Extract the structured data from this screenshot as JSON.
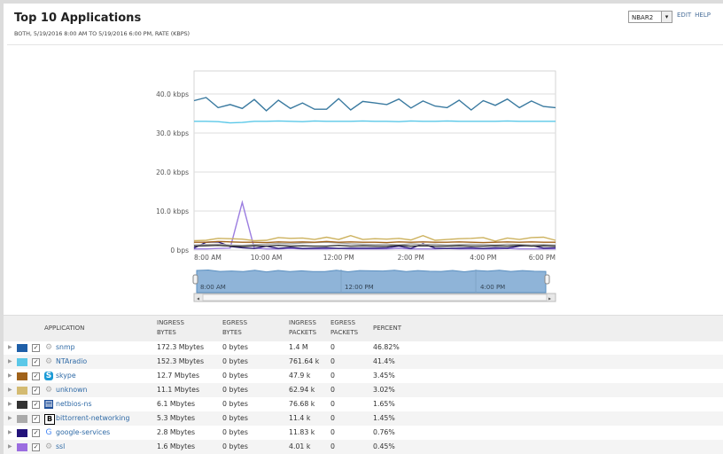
{
  "header": {
    "title": "Top 10 Applications",
    "subtitle": "BOTH, 5/19/2016 8:00 AM TO 5/19/2016 6:00 PM, RATE (KBPS)",
    "select_value": "NBAR2",
    "edit": "EDIT",
    "help": "HELP"
  },
  "chart_data": {
    "type": "line",
    "ylim": [
      0,
      45
    ],
    "y_ticks": [
      "0 bps",
      "10.0 kbps",
      "20.0 kbps",
      "30.0 kbps",
      "40.0 kbps"
    ],
    "y_tick_values": [
      0,
      10,
      20,
      30,
      40
    ],
    "x_ticks": [
      "8:00 AM",
      "10:00 AM",
      "12:00 PM",
      "2:00 PM",
      "4:00 PM",
      "6:00 PM"
    ],
    "navigator_ticks": [
      "8:00 AM",
      "12:00 PM",
      "4:00 PM"
    ],
    "x": [
      "08:00",
      "08:20",
      "08:40",
      "09:00",
      "09:20",
      "09:40",
      "10:00",
      "10:20",
      "10:40",
      "11:00",
      "11:20",
      "11:40",
      "12:00",
      "12:20",
      "12:40",
      "13:00",
      "13:20",
      "13:40",
      "14:00",
      "14:20",
      "14:40",
      "15:00",
      "15:20",
      "15:40",
      "16:00",
      "16:20",
      "16:40",
      "17:00",
      "17:20",
      "17:40",
      "18:00"
    ],
    "grid": true,
    "series": [
      {
        "name": "snmp",
        "color": "#3a7aa0",
        "values": [
          38.3,
          39.1,
          36.5,
          37.3,
          36.3,
          38.6,
          35.7,
          38.4,
          36.3,
          37.7,
          36.1,
          36.1,
          38.8,
          35.9,
          38.1,
          37.7,
          37.3,
          38.7,
          36.4,
          38.2,
          36.9,
          36.5,
          38.4,
          35.9,
          38.3,
          37.1,
          38.7,
          36.5,
          38.2,
          36.8,
          36.5
        ]
      },
      {
        "name": "NTAradio",
        "color": "#5bc8e8",
        "values": [
          33.0,
          33.0,
          32.9,
          32.6,
          32.7,
          33.0,
          33.0,
          33.1,
          33.0,
          32.9,
          33.1,
          33.0,
          33.0,
          33.0,
          33.1,
          33.0,
          33.0,
          32.9,
          33.1,
          33.0,
          33.0,
          33.1,
          33.0,
          33.0,
          33.0,
          33.0,
          33.1,
          33.0,
          33.0,
          33.0,
          33.0
        ]
      },
      {
        "name": "skype",
        "color": "#a0621a",
        "values": [
          2.0,
          2.0,
          2.2,
          2.1,
          2.0,
          2.0,
          1.9,
          2.1,
          2.0,
          2.1,
          2.0,
          2.2,
          2.0,
          2.1,
          2.0,
          2.0,
          1.9,
          2.1,
          2.0,
          2.1,
          2.0,
          2.0,
          2.1,
          2.0,
          1.9,
          2.0,
          2.1,
          2.0,
          2.1,
          2.0,
          2.0
        ]
      },
      {
        "name": "unknown",
        "color": "#cdb25e",
        "values": [
          2.4,
          2.5,
          3.0,
          2.9,
          2.8,
          2.4,
          2.5,
          3.2,
          3.0,
          3.1,
          2.7,
          3.3,
          2.7,
          3.7,
          2.7,
          2.9,
          2.8,
          3.0,
          2.6,
          3.7,
          2.5,
          2.7,
          2.9,
          3.0,
          3.2,
          2.3,
          3.1,
          2.7,
          3.2,
          3.3,
          2.5
        ]
      },
      {
        "name": "netbios-ns",
        "color": "#333333",
        "values": [
          1.0,
          1.1,
          1.2,
          1.0,
          0.9,
          1.1,
          1.0,
          1.2,
          1.0,
          1.1,
          1.0,
          1.0,
          1.2,
          1.0,
          1.1,
          1.0,
          1.0,
          1.2,
          1.0,
          1.1,
          1.0,
          1.0,
          1.1,
          1.0,
          1.0,
          1.1,
          1.0,
          1.2,
          1.0,
          1.1,
          1.0
        ]
      },
      {
        "name": "bittorrent-networking",
        "color": "#aaaaaa",
        "values": [
          1.3,
          1.4,
          1.5,
          1.3,
          1.2,
          1.4,
          1.5,
          1.7,
          1.6,
          1.8,
          1.9,
          2.0,
          1.8,
          1.6,
          1.5,
          1.4,
          1.5,
          1.3,
          1.6,
          1.4,
          1.5,
          1.3,
          1.4,
          1.5,
          1.4,
          1.3,
          1.5,
          1.4,
          1.3,
          1.4,
          1.3
        ]
      },
      {
        "name": "google-services",
        "color": "#2a1a7a",
        "values": [
          0.5,
          2.0,
          2.1,
          0.9,
          0.6,
          0.4,
          1.0,
          0.4,
          0.7,
          0.4,
          0.5,
          0.6,
          0.4,
          0.5,
          0.5,
          0.5,
          0.6,
          1.0,
          0.4,
          1.6,
          0.5,
          0.4,
          0.5,
          0.6,
          0.4,
          0.6,
          0.5,
          1.0,
          1.2,
          0.5,
          0.6
        ]
      },
      {
        "name": "ssl",
        "color": "#9b7de0",
        "values": [
          0.3,
          0.3,
          0.4,
          0.5,
          12.2,
          0.5,
          0.3,
          0.3,
          0.4,
          0.3,
          0.3,
          0.3,
          0.4,
          0.3,
          0.3,
          0.3,
          0.3,
          0.4,
          0.3,
          0.3,
          0.3,
          0.4,
          0.3,
          0.3,
          0.3,
          0.3,
          0.4,
          0.3,
          0.3,
          0.3,
          0.3
        ]
      }
    ]
  },
  "table": {
    "headers": [
      [
        "",
        "APPLICATION"
      ],
      [
        "INGRESS",
        "BYTES"
      ],
      [
        "EGRESS",
        "BYTES"
      ],
      [
        "INGRESS",
        "PACKETS"
      ],
      [
        "EGRESS",
        "PACKETS"
      ],
      [
        "",
        "PERCENT"
      ]
    ],
    "rows": [
      {
        "color": "#1f5fa8",
        "icon": "gear-icon",
        "name": "snmp",
        "ingress_bytes": "172.3 Mbytes",
        "egress_bytes": "0 bytes",
        "ingress_packets": "1.4 M",
        "egress_packets": "0",
        "percent": "46.82%"
      },
      {
        "color": "#5bc8e8",
        "icon": "gear-icon",
        "name": "NTAradio",
        "ingress_bytes": "152.3 Mbytes",
        "egress_bytes": "0 bytes",
        "ingress_packets": "761.64 k",
        "egress_packets": "0",
        "percent": "41.4%"
      },
      {
        "color": "#a0621a",
        "icon": "skype-icon",
        "name": "skype",
        "ingress_bytes": "12.7 Mbytes",
        "egress_bytes": "0 bytes",
        "ingress_packets": "47.9 k",
        "egress_packets": "0",
        "percent": "3.45%"
      },
      {
        "color": "#d4bb72",
        "icon": "gear-icon",
        "name": "unknown",
        "ingress_bytes": "11.1 Mbytes",
        "egress_bytes": "0 bytes",
        "ingress_packets": "62.94 k",
        "egress_packets": "0",
        "percent": "3.02%"
      },
      {
        "color": "#333333",
        "icon": "ibm-icon",
        "name": "netbios-ns",
        "ingress_bytes": "6.1 Mbytes",
        "egress_bytes": "0 bytes",
        "ingress_packets": "76.68 k",
        "egress_packets": "0",
        "percent": "1.65%"
      },
      {
        "color": "#aaaaaa",
        "icon": "bittorrent-icon",
        "name": "bittorrent-networking",
        "ingress_bytes": "5.3 Mbytes",
        "egress_bytes": "0 bytes",
        "ingress_packets": "11.4 k",
        "egress_packets": "0",
        "percent": "1.45%"
      },
      {
        "color": "#22127a",
        "icon": "google-icon",
        "name": "google-services",
        "ingress_bytes": "2.8 Mbytes",
        "egress_bytes": "0 bytes",
        "ingress_packets": "11.83 k",
        "egress_packets": "0",
        "percent": "0.76%"
      },
      {
        "color": "#9b6de0",
        "icon": "gear-icon",
        "name": "ssl",
        "ingress_bytes": "1.6 Mbytes",
        "egress_bytes": "0 bytes",
        "ingress_packets": "4.01 k",
        "egress_packets": "0",
        "percent": "0.45%"
      }
    ]
  }
}
